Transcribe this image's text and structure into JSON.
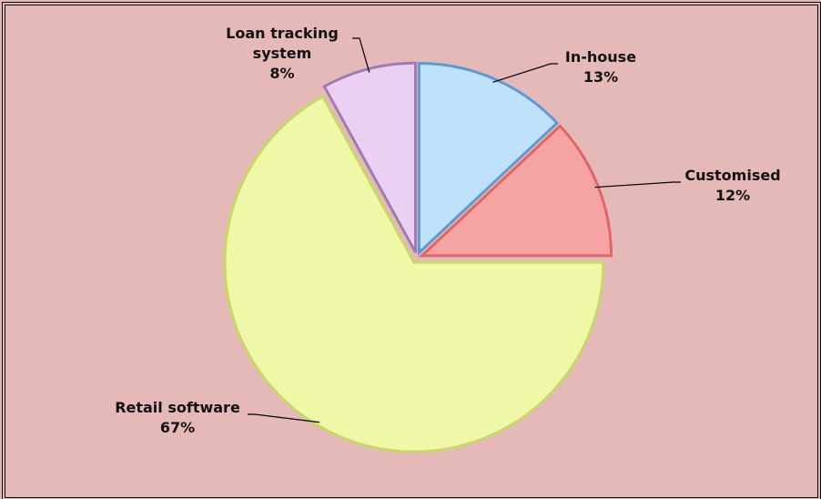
{
  "chart_data": {
    "type": "pie",
    "categories": [
      "In-house",
      "Customised",
      "Retail software",
      "Loan tracking system"
    ],
    "values": [
      13,
      12,
      67,
      8
    ],
    "value_labels": [
      "13%",
      "12%",
      "67%",
      "8%"
    ],
    "colors": [
      "#bfe1fa",
      "#f6a3a3",
      "#eef8a6",
      "#ead0f2"
    ]
  }
}
